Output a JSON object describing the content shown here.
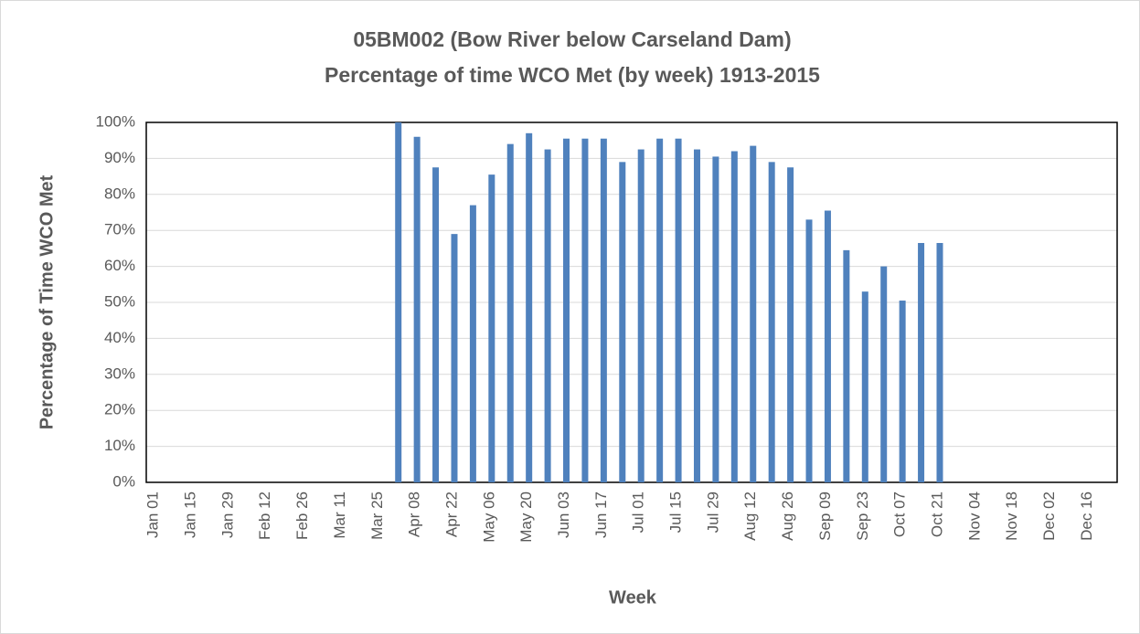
{
  "chart_data": {
    "type": "bar",
    "title": "05BM002 (Bow River below Carseland Dam)",
    "subtitle": "Percentage of time WCO Met (by week) 1913-2015",
    "x_label": "Week",
    "y_label": "Percentage of Time WCO Met",
    "color": "#4f81bd",
    "grid": true,
    "categories": [
      "Jan 01",
      null,
      "Jan 15",
      null,
      "Jan 29",
      null,
      "Feb 12",
      null,
      "Feb 26",
      null,
      "Mar 11",
      null,
      "Mar 25",
      null,
      "Apr 08",
      null,
      "Apr 22",
      null,
      "May 06",
      null,
      "May 20",
      null,
      "Jun 03",
      null,
      "Jun 17",
      null,
      "Jul 01",
      null,
      "Jul 15",
      null,
      "Jul 29",
      null,
      "Aug 12",
      null,
      "Aug 26",
      null,
      "Sep 09",
      null,
      "Sep 23",
      null,
      "Oct 07",
      null,
      "Oct 21",
      null,
      "Nov 04",
      null,
      "Nov 18",
      null,
      "Dec 02",
      null,
      "Dec 16",
      null
    ],
    "values": [
      null,
      null,
      null,
      null,
      null,
      null,
      null,
      null,
      null,
      null,
      null,
      null,
      null,
      100,
      96,
      87.5,
      69,
      77,
      85.5,
      94,
      97,
      92.5,
      95.5,
      95.5,
      95.5,
      89,
      92.5,
      95.5,
      95.5,
      92.5,
      90.5,
      92,
      93.5,
      89,
      87.5,
      73,
      75.5,
      64.5,
      53,
      60,
      50.5,
      66.5,
      66.5,
      null,
      null,
      null,
      null,
      null,
      null,
      null,
      null,
      null
    ],
    "ylim": [
      0,
      100
    ],
    "yticks": [
      {
        "value": 0,
        "label": "0%"
      },
      {
        "value": 10,
        "label": "10%"
      },
      {
        "value": 20,
        "label": "20%"
      },
      {
        "value": 30,
        "label": "30%"
      },
      {
        "value": 40,
        "label": "40%"
      },
      {
        "value": 50,
        "label": "50%"
      },
      {
        "value": 60,
        "label": "60%"
      },
      {
        "value": 70,
        "label": "70%"
      },
      {
        "value": 80,
        "label": "80%"
      },
      {
        "value": 90,
        "label": "90%"
      },
      {
        "value": 100,
        "label": "100%"
      }
    ]
  }
}
